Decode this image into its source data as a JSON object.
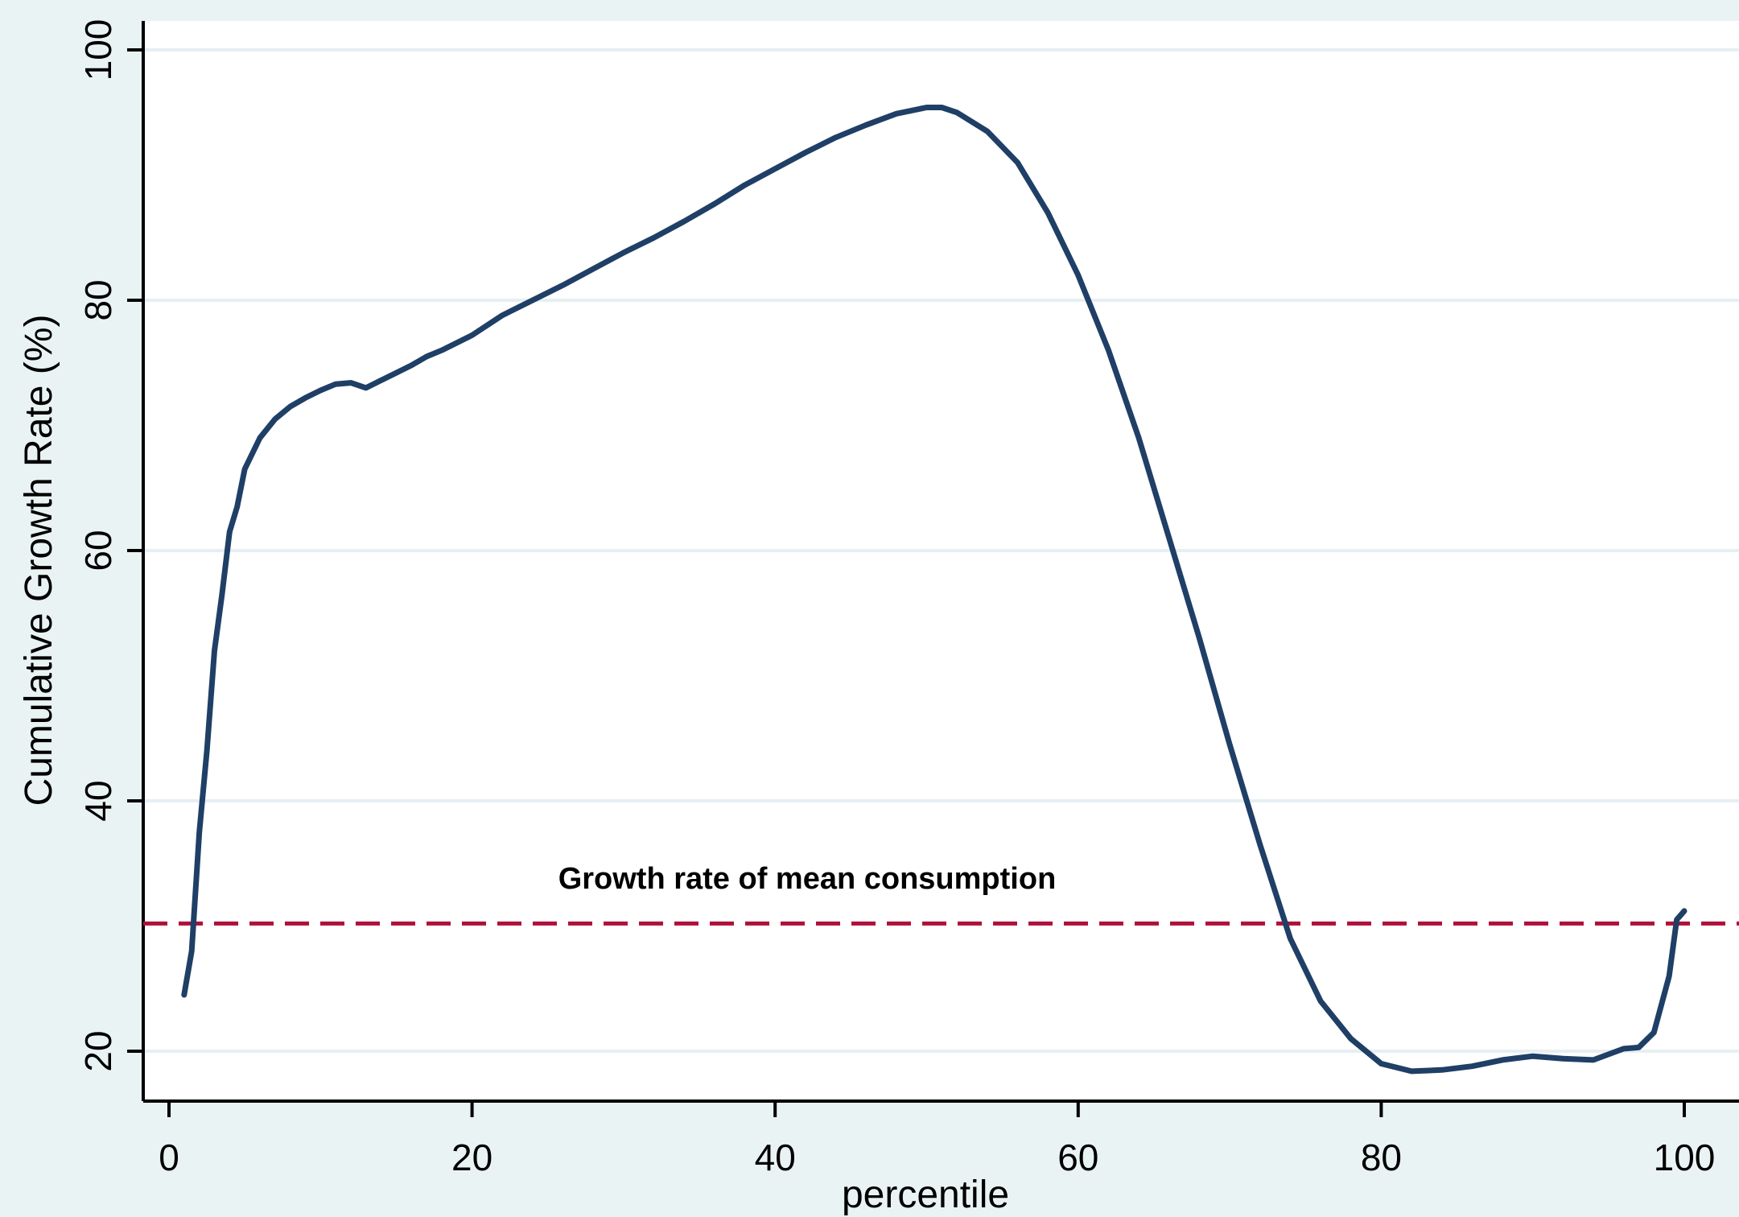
{
  "chart_data": {
    "type": "line",
    "title": "",
    "xlabel": "percentile",
    "ylabel": "Cumulative Growth Rate (%)",
    "xlim": [
      -2,
      102
    ],
    "ylim": [
      16,
      102
    ],
    "xticks": [
      0,
      20,
      40,
      60,
      80,
      100
    ],
    "yticks": [
      20,
      40,
      60,
      80,
      100
    ],
    "grid": "horizontal",
    "colors": {
      "background": "#eaf3f3",
      "plot_area": "#ffffff",
      "line": "#1f3f66",
      "reference": "#b0103a",
      "grid": "#e6eff3"
    },
    "series": [
      {
        "x": [
          1,
          1.5,
          2,
          2.5,
          3,
          3.5,
          4,
          4.5,
          5,
          6,
          7,
          8,
          9,
          10,
          11,
          12,
          13,
          14,
          15,
          16,
          17,
          18,
          20,
          22,
          24,
          26,
          28,
          30,
          32,
          34,
          36,
          38,
          40,
          42,
          44,
          46,
          48,
          50,
          51,
          52,
          54,
          56,
          58,
          60,
          62,
          64,
          66,
          68,
          70,
          72,
          74,
          76,
          78,
          80,
          82,
          84,
          86,
          88,
          90,
          92,
          94,
          96,
          97,
          98,
          99,
          99.5,
          100
        ],
        "y": [
          24.5,
          28,
          37.5,
          44,
          52,
          56.5,
          61.5,
          63.5,
          66.5,
          69,
          70.5,
          71.5,
          72.2,
          72.8,
          73.3,
          73.4,
          73,
          73.6,
          74.2,
          74.8,
          75.5,
          76,
          77.2,
          78.8,
          80,
          81.2,
          82.5,
          83.8,
          85,
          86.3,
          87.7,
          89.2,
          90.5,
          91.8,
          93,
          94,
          94.9,
          95.4,
          95.4,
          95,
          93.5,
          91,
          87,
          82,
          76,
          69,
          61,
          53,
          44.5,
          36.5,
          29,
          24,
          21,
          19,
          18.4,
          18.5,
          18.8,
          19.3,
          19.6,
          19.4,
          19.3,
          20.2,
          20.3,
          21.5,
          26,
          30.5,
          31.2
        ]
      }
    ],
    "reference_line": {
      "y": 30.2,
      "style": "dashed",
      "label": "Growth rate of mean consumption"
    }
  }
}
